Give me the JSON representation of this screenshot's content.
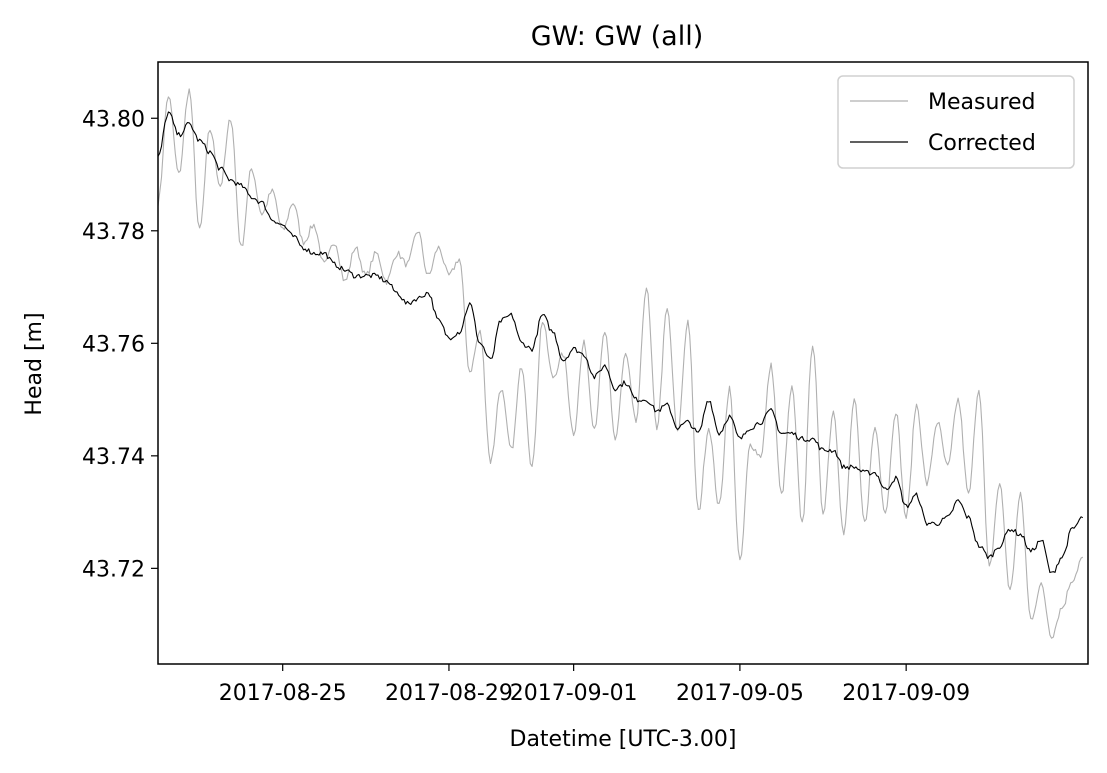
{
  "chart_data": {
    "type": "line",
    "title": "GW: GW (all)",
    "xlabel": "Datetime [UTC-3.00]",
    "ylabel": "Head [m]",
    "xlim": [
      "2017-08-22",
      "2017-09-13 09:00"
    ],
    "ylim": [
      43.703,
      43.81
    ],
    "x_ticks": [
      "2017-08-25",
      "2017-08-29",
      "2017-09-01",
      "2017-09-05",
      "2017-09-09"
    ],
    "y_ticks": [
      43.72,
      43.74,
      43.76,
      43.78,
      43.8
    ],
    "y_tick_labels": [
      "43.72",
      "43.74",
      "43.76",
      "43.78",
      "43.80"
    ],
    "grid": false,
    "legend_position": "top-right",
    "series": [
      {
        "name": "Measured",
        "color": "#b0b0b0",
        "x": [
          "2017-08-22 00:00",
          "2017-08-22 06:00",
          "2017-08-22 12:00",
          "2017-08-22 18:00",
          "2017-08-23 00:00",
          "2017-08-23 06:00",
          "2017-08-23 12:00",
          "2017-08-23 18:00",
          "2017-08-24 00:00",
          "2017-08-24 06:00",
          "2017-08-24 12:00",
          "2017-08-24 18:00",
          "2017-08-25 00:00",
          "2017-08-25 06:00",
          "2017-08-25 12:00",
          "2017-08-25 18:00",
          "2017-08-26 00:00",
          "2017-08-26 06:00",
          "2017-08-26 12:00",
          "2017-08-26 18:00",
          "2017-08-27 00:00",
          "2017-08-27 06:00",
          "2017-08-27 12:00",
          "2017-08-27 18:00",
          "2017-08-28 00:00",
          "2017-08-28 06:00",
          "2017-08-28 12:00",
          "2017-08-28 18:00",
          "2017-08-29 00:00",
          "2017-08-29 06:00",
          "2017-08-29 12:00",
          "2017-08-29 18:00",
          "2017-08-30 00:00",
          "2017-08-30 06:00",
          "2017-08-30 12:00",
          "2017-08-30 18:00",
          "2017-08-31 00:00",
          "2017-08-31 06:00",
          "2017-08-31 12:00",
          "2017-08-31 18:00",
          "2017-09-01 00:00",
          "2017-09-01 06:00",
          "2017-09-01 12:00",
          "2017-09-01 18:00",
          "2017-09-02 00:00",
          "2017-09-02 06:00",
          "2017-09-02 12:00",
          "2017-09-02 18:00",
          "2017-09-03 00:00",
          "2017-09-03 06:00",
          "2017-09-03 12:00",
          "2017-09-03 18:00",
          "2017-09-04 00:00",
          "2017-09-04 06:00",
          "2017-09-04 12:00",
          "2017-09-04 18:00",
          "2017-09-05 00:00",
          "2017-09-05 06:00",
          "2017-09-05 12:00",
          "2017-09-05 18:00",
          "2017-09-06 00:00",
          "2017-09-06 06:00",
          "2017-09-06 12:00",
          "2017-09-06 18:00",
          "2017-09-07 00:00",
          "2017-09-07 06:00",
          "2017-09-07 12:00",
          "2017-09-07 18:00",
          "2017-09-08 00:00",
          "2017-09-08 06:00",
          "2017-09-08 12:00",
          "2017-09-08 18:00",
          "2017-09-09 00:00",
          "2017-09-09 06:00",
          "2017-09-09 12:00",
          "2017-09-09 18:00",
          "2017-09-10 00:00",
          "2017-09-10 06:00",
          "2017-09-10 12:00",
          "2017-09-10 18:00",
          "2017-09-11 00:00",
          "2017-09-11 06:00",
          "2017-09-11 12:00",
          "2017-09-11 18:00",
          "2017-09-12 00:00",
          "2017-09-12 06:00",
          "2017-09-12 12:00",
          "2017-09-12 18:00",
          "2017-09-13 00:00",
          "2017-09-13 06:00"
        ],
        "y": [
          43.785,
          43.804,
          43.79,
          43.805,
          43.78,
          43.798,
          43.788,
          43.8,
          43.777,
          43.791,
          43.783,
          43.787,
          43.78,
          43.785,
          43.778,
          43.781,
          43.774,
          43.778,
          43.771,
          43.777,
          43.772,
          43.776,
          43.771,
          43.776,
          43.774,
          43.78,
          43.772,
          43.777,
          43.772,
          43.775,
          43.755,
          43.762,
          43.739,
          43.752,
          43.741,
          43.756,
          43.738,
          43.764,
          43.754,
          43.758,
          43.744,
          43.76,
          43.745,
          43.762,
          43.743,
          43.758,
          43.746,
          43.77,
          43.745,
          43.766,
          43.744,
          43.764,
          43.73,
          43.745,
          43.731,
          43.752,
          43.721,
          43.742,
          43.74,
          43.756,
          43.733,
          43.752,
          43.728,
          43.76,
          43.73,
          43.748,
          43.726,
          43.75,
          43.728,
          43.745,
          43.73,
          43.748,
          43.729,
          43.749,
          43.735,
          43.746,
          43.738,
          43.75,
          43.733,
          43.752,
          43.72,
          43.735,
          43.716,
          43.733,
          43.711,
          43.717,
          43.708,
          43.713,
          43.718,
          43.722
        ],
        "range_max": 43.805,
        "range_min": 43.708
      },
      {
        "name": "Corrected",
        "color": "#000000",
        "x": [
          "2017-08-22 00:00",
          "2017-08-22 06:00",
          "2017-08-22 12:00",
          "2017-08-22 18:00",
          "2017-08-23 00:00",
          "2017-08-23 06:00",
          "2017-08-23 12:00",
          "2017-08-23 18:00",
          "2017-08-24 00:00",
          "2017-08-24 06:00",
          "2017-08-24 12:00",
          "2017-08-24 18:00",
          "2017-08-25 00:00",
          "2017-08-25 06:00",
          "2017-08-25 12:00",
          "2017-08-25 18:00",
          "2017-08-26 00:00",
          "2017-08-26 06:00",
          "2017-08-26 12:00",
          "2017-08-26 18:00",
          "2017-08-27 00:00",
          "2017-08-27 06:00",
          "2017-08-27 12:00",
          "2017-08-27 18:00",
          "2017-08-28 00:00",
          "2017-08-28 06:00",
          "2017-08-28 12:00",
          "2017-08-28 18:00",
          "2017-08-29 00:00",
          "2017-08-29 06:00",
          "2017-08-29 12:00",
          "2017-08-29 18:00",
          "2017-08-30 00:00",
          "2017-08-30 06:00",
          "2017-08-30 12:00",
          "2017-08-30 18:00",
          "2017-08-31 00:00",
          "2017-08-31 06:00",
          "2017-08-31 12:00",
          "2017-08-31 18:00",
          "2017-09-01 00:00",
          "2017-09-01 06:00",
          "2017-09-01 12:00",
          "2017-09-01 18:00",
          "2017-09-02 00:00",
          "2017-09-02 06:00",
          "2017-09-02 12:00",
          "2017-09-02 18:00",
          "2017-09-03 00:00",
          "2017-09-03 06:00",
          "2017-09-03 12:00",
          "2017-09-03 18:00",
          "2017-09-04 00:00",
          "2017-09-04 06:00",
          "2017-09-04 12:00",
          "2017-09-04 18:00",
          "2017-09-05 00:00",
          "2017-09-05 06:00",
          "2017-09-05 12:00",
          "2017-09-05 18:00",
          "2017-09-06 00:00",
          "2017-09-06 06:00",
          "2017-09-06 12:00",
          "2017-09-06 18:00",
          "2017-09-07 00:00",
          "2017-09-07 06:00",
          "2017-09-07 12:00",
          "2017-09-07 18:00",
          "2017-09-08 00:00",
          "2017-09-08 06:00",
          "2017-09-08 12:00",
          "2017-09-08 18:00",
          "2017-09-09 00:00",
          "2017-09-09 06:00",
          "2017-09-09 12:00",
          "2017-09-09 18:00",
          "2017-09-10 00:00",
          "2017-09-10 06:00",
          "2017-09-10 12:00",
          "2017-09-10 18:00",
          "2017-09-11 00:00",
          "2017-09-11 06:00",
          "2017-09-11 12:00",
          "2017-09-11 18:00",
          "2017-09-12 00:00",
          "2017-09-12 06:00",
          "2017-09-12 12:00",
          "2017-09-12 18:00",
          "2017-09-13 00:00",
          "2017-09-13 06:00"
        ],
        "y": [
          43.793,
          43.801,
          43.797,
          43.799,
          43.796,
          43.794,
          43.791,
          43.789,
          43.788,
          43.786,
          43.785,
          43.782,
          43.781,
          43.779,
          43.777,
          43.776,
          43.776,
          43.774,
          43.773,
          43.772,
          43.772,
          43.772,
          43.771,
          43.769,
          43.767,
          43.768,
          43.769,
          43.764,
          43.761,
          43.762,
          43.767,
          43.76,
          43.757,
          43.764,
          43.765,
          43.76,
          43.759,
          43.765,
          43.762,
          43.757,
          43.759,
          43.758,
          43.754,
          43.756,
          43.752,
          43.753,
          43.75,
          43.75,
          43.748,
          43.749,
          43.745,
          43.746,
          43.744,
          43.75,
          43.744,
          43.747,
          43.743,
          43.745,
          43.746,
          43.748,
          43.744,
          43.744,
          43.743,
          43.743,
          43.741,
          43.741,
          43.738,
          43.738,
          43.737,
          43.737,
          43.734,
          43.736,
          43.731,
          43.733,
          43.728,
          43.728,
          43.729,
          43.732,
          43.729,
          43.724,
          43.722,
          43.724,
          43.727,
          43.726,
          43.723,
          43.725,
          43.719,
          43.722,
          43.727,
          43.729
        ],
        "range_max": 43.801,
        "range_min": 43.719
      }
    ]
  }
}
